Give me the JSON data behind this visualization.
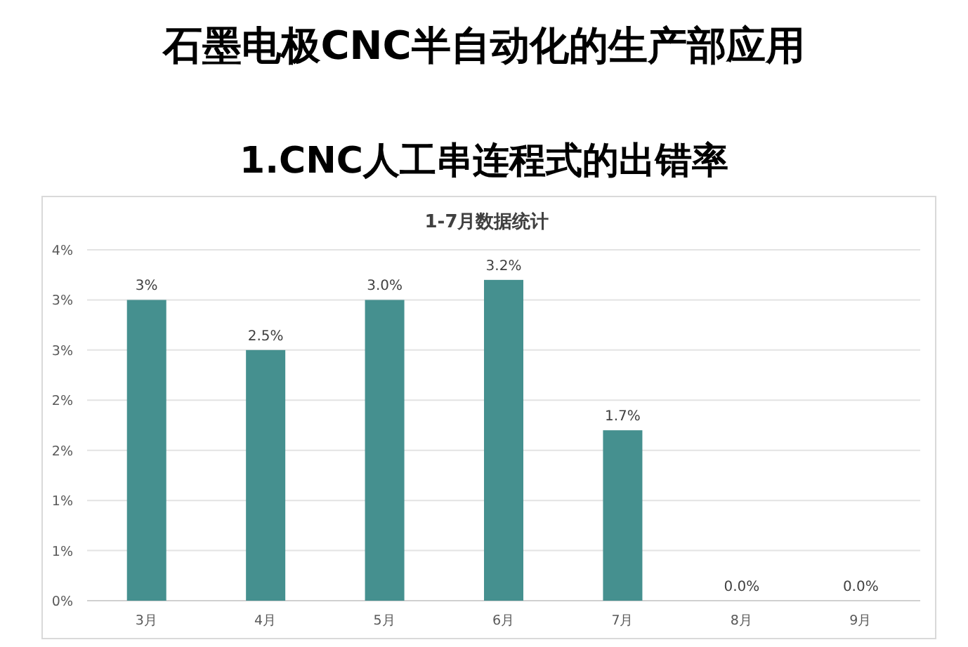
{
  "chart_data": {
    "type": "bar",
    "title": "石墨电极CNC半自动化的生产部应用",
    "subtitle": "1.CNC人工串连程式的出错率",
    "annotations": [
      "1-7月数据统计"
    ],
    "categories": [
      "3月",
      "4月",
      "5月",
      "6月",
      "7月",
      "8月",
      "9月"
    ],
    "values": [
      3.0,
      2.5,
      3.0,
      3.2,
      1.7,
      0,
      0
    ],
    "value_labels": [
      "3%",
      "2.5%",
      "3.0%",
      "3.2%",
      "1.7%",
      "0.0%",
      "0.0%"
    ],
    "color": "#45908f",
    "ylim": [
      0,
      3.5
    ],
    "yticks": [
      {
        "value": 0,
        "label": "0%"
      },
      {
        "value": 0.5,
        "label": "1%"
      },
      {
        "value": 1,
        "label": "1%"
      },
      {
        "value": 1.5,
        "label": "2%"
      },
      {
        "value": 2,
        "label": "2%"
      },
      {
        "value": 2.5,
        "label": "3%"
      },
      {
        "value": 3,
        "label": "3%"
      },
      {
        "value": 3.5,
        "label": "4%"
      }
    ],
    "grid": "y"
  }
}
